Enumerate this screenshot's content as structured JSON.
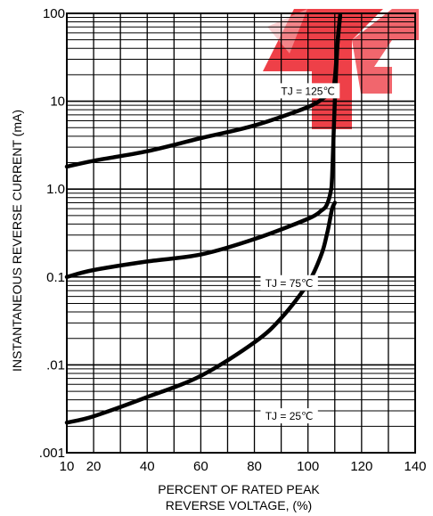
{
  "chart_data": {
    "type": "line",
    "title": "",
    "xlabel_lines": [
      "PERCENT OF RATED PEAK",
      "REVERSE VOLTAGE, (%)"
    ],
    "ylabel": "INSTANTANEOUS REVERSE CURRENT (mA)",
    "x_scale": "linear",
    "y_scale": "log",
    "xlim": [
      10,
      140
    ],
    "ylim": [
      0.001,
      100
    ],
    "x_ticks": [
      {
        "value": 10,
        "label": "10"
      },
      {
        "value": 20,
        "label": "20"
      },
      {
        "value": 40,
        "label": "40"
      },
      {
        "value": 60,
        "label": "60"
      },
      {
        "value": 80,
        "label": "80"
      },
      {
        "value": 100,
        "label": "100"
      },
      {
        "value": 120,
        "label": "120"
      },
      {
        "value": 140,
        "label": "140"
      }
    ],
    "y_ticks": [
      {
        "value": 100,
        "label": "100"
      },
      {
        "value": 10,
        "label": "10"
      },
      {
        "value": 1,
        "label": "1.0"
      },
      {
        "value": 0.1,
        "label": "0.1"
      },
      {
        "value": 0.01,
        "label": ".01"
      },
      {
        "value": 0.001,
        "label": ".001"
      }
    ],
    "grid": true,
    "series": [
      {
        "name": "TJ = 125℃",
        "x": [
          10,
          20,
          40,
          60,
          80,
          100,
          106,
          109,
          110,
          111,
          112
        ],
        "y": [
          1.8,
          2.1,
          2.7,
          3.8,
          5.3,
          8.6,
          11,
          13,
          18,
          45,
          95
        ]
      },
      {
        "name": "TJ = 75℃",
        "x": [
          10,
          20,
          40,
          60,
          80,
          100,
          105,
          107,
          108.5,
          109,
          110,
          111,
          112
        ],
        "y": [
          0.1,
          0.12,
          0.15,
          0.18,
          0.27,
          0.46,
          0.57,
          0.66,
          0.95,
          1.4,
          10,
          45,
          95
        ]
      },
      {
        "name": "TJ = 25℃",
        "x": [
          10,
          20,
          40,
          60,
          80,
          90,
          100,
          105,
          107,
          108,
          109,
          110
        ],
        "y": [
          0.0022,
          0.0026,
          0.0043,
          0.0075,
          0.018,
          0.034,
          0.085,
          0.18,
          0.3,
          0.42,
          0.6,
          0.7
        ]
      }
    ],
    "colors": {
      "grid": "#000000",
      "curve": "#000000",
      "watermark": "#e8000b"
    }
  }
}
